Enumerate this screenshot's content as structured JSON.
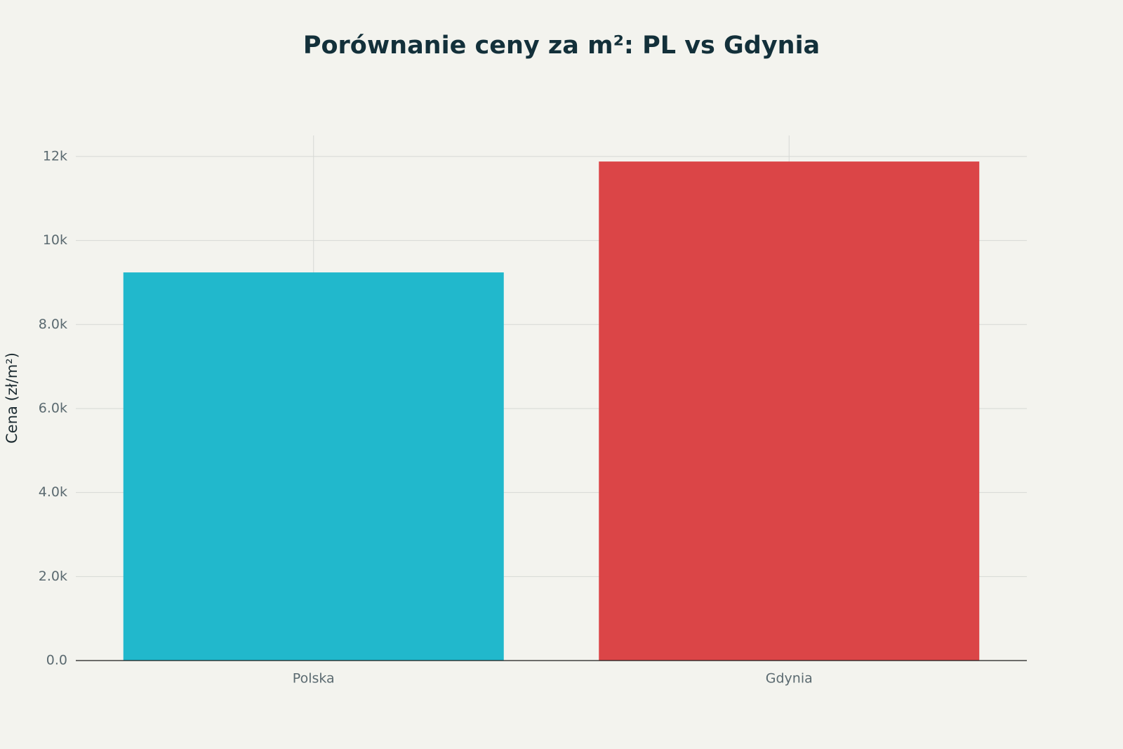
{
  "chart_data": {
    "type": "bar",
    "title": "Porównanie ceny za m²: PL vs Gdynia",
    "y_label": "Cena (zł/m²)",
    "categories": [
      "Polska",
      "Gdynia"
    ],
    "values": [
      9240,
      11880
    ],
    "colors": [
      "#21b8cc",
      "#db4547"
    ],
    "ylim": [
      0,
      12500
    ],
    "yticks": [
      {
        "value": 0,
        "label": "0.0"
      },
      {
        "value": 2000,
        "label": "2.0k"
      },
      {
        "value": 4000,
        "label": "4.0k"
      },
      {
        "value": 6000,
        "label": "6.0k"
      },
      {
        "value": 8000,
        "label": "8.0k"
      },
      {
        "value": 10000,
        "label": "10k"
      },
      {
        "value": 12000,
        "label": "12k"
      }
    ],
    "grid": true
  }
}
